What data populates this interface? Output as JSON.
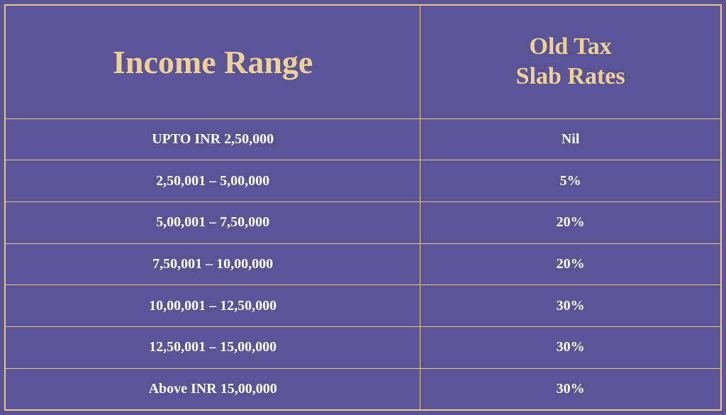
{
  "table": {
    "background_color": "#5a5495",
    "border_color": "#e6c88a",
    "header_text_color": "#f0d099",
    "body_text_color": "#ffffff",
    "header_left_fontsize": 46,
    "header_right_fontsize": 34,
    "body_fontsize": 20,
    "columns": [
      {
        "label": "Income Range",
        "width_pct": 58
      },
      {
        "label_line1": "Old Tax",
        "label_line2": "Slab Rates",
        "width_pct": 42
      }
    ],
    "rows": [
      [
        "UPTO INR 2,50,000",
        "Nil"
      ],
      [
        "2,50,001 – 5,00,000",
        "5%"
      ],
      [
        "5,00,001 – 7,50,000",
        "20%"
      ],
      [
        "7,50,001 – 10,00,000",
        "20%"
      ],
      [
        "10,00,001 – 12,50,000",
        "30%"
      ],
      [
        "12,50,001 – 15,00,000",
        "30%"
      ],
      [
        "Above INR 15,00,000",
        "30%"
      ]
    ]
  }
}
